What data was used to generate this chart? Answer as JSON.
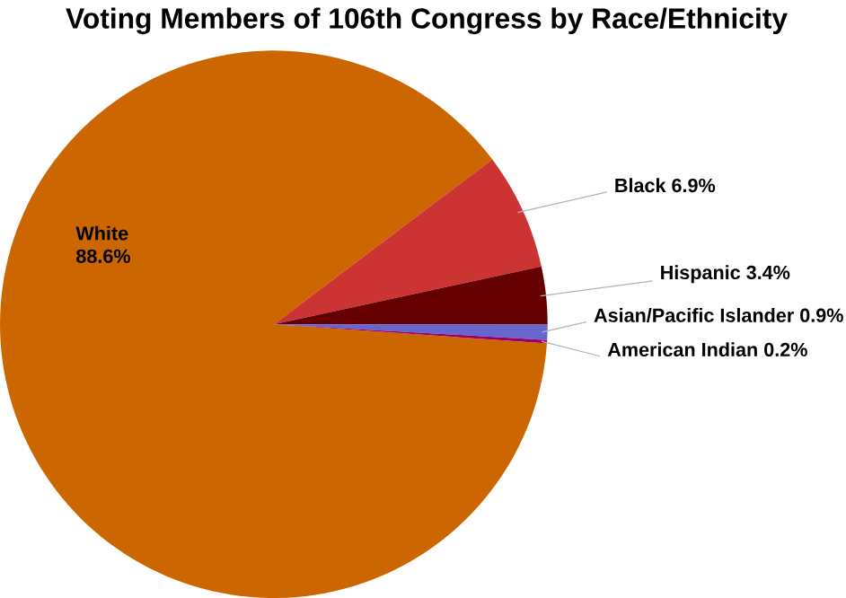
{
  "chart_data": {
    "type": "pie",
    "title": "Voting Members of 106th Congress by Race/Ethnicity",
    "categories": [
      "White",
      "Black",
      "Hispanic",
      "Asian/Pacific Islander",
      "American Indian"
    ],
    "values": [
      88.6,
      6.9,
      3.4,
      0.9,
      0.2
    ],
    "value_labels": [
      "88.6%",
      "6.9%",
      "3.4%",
      "0.9%",
      "0.2%"
    ],
    "colors": [
      "#cc6600",
      "#cc3333",
      "#660000",
      "#6666cc",
      "#990066"
    ]
  }
}
